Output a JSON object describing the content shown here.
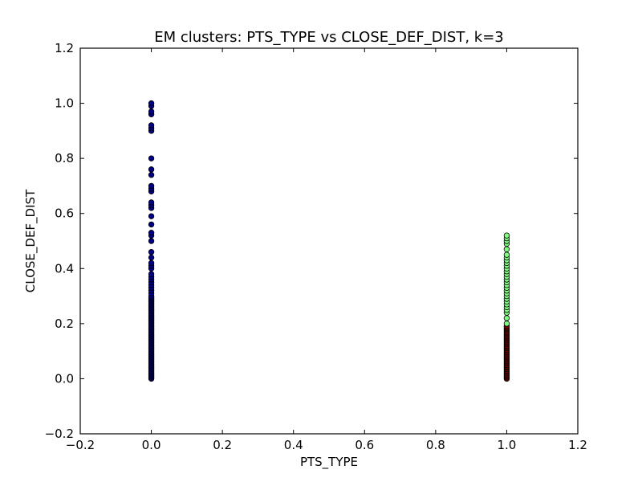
{
  "chart_data": {
    "type": "scatter",
    "title": "EM clusters: PTS_TYPE vs CLOSE_DEF_DIST, k=3",
    "xlabel": "PTS_TYPE",
    "ylabel": "CLOSE_DEF_DIST",
    "xlim": [
      -0.2,
      1.2
    ],
    "ylim": [
      -0.2,
      1.2
    ],
    "xticks": [
      -0.2,
      0.0,
      0.2,
      0.4,
      0.6,
      0.8,
      1.0,
      1.2
    ],
    "yticks": [
      -0.2,
      0.0,
      0.2,
      0.4,
      0.6,
      0.8,
      1.0,
      1.2
    ],
    "xtick_labels": [
      "−0.2",
      "0.0",
      "0.2",
      "0.4",
      "0.6",
      "0.8",
      "1.0",
      "1.2"
    ],
    "ytick_labels": [
      "−0.2",
      "0.0",
      "0.2",
      "0.4",
      "0.6",
      "0.8",
      "1.0",
      "1.2"
    ],
    "grid": false,
    "legend": "none",
    "series": [
      {
        "color": "#00007f",
        "x": 0.0,
        "y": [
          0.0,
          0.005,
          0.01,
          0.015,
          0.02,
          0.025,
          0.03,
          0.035,
          0.04,
          0.045,
          0.05,
          0.055,
          0.06,
          0.065,
          0.07,
          0.075,
          0.08,
          0.085,
          0.09,
          0.095,
          0.1,
          0.105,
          0.11,
          0.115,
          0.12,
          0.125,
          0.13,
          0.135,
          0.14,
          0.145,
          0.15,
          0.155,
          0.16,
          0.165,
          0.17,
          0.175,
          0.18,
          0.185,
          0.19,
          0.195,
          0.2,
          0.205,
          0.21,
          0.215,
          0.22,
          0.225,
          0.23,
          0.235,
          0.24,
          0.245,
          0.25,
          0.255,
          0.26,
          0.265,
          0.27,
          0.275,
          0.28,
          0.285,
          0.29,
          0.295,
          0.3,
          0.31,
          0.32,
          0.33,
          0.34,
          0.35,
          0.36,
          0.37,
          0.38,
          0.4,
          0.41,
          0.42,
          0.44,
          0.46,
          0.5,
          0.52,
          0.53,
          0.56,
          0.59,
          0.62,
          0.63,
          0.64,
          0.68,
          0.69,
          0.7,
          0.74,
          0.76,
          0.8,
          0.9,
          0.91,
          0.92,
          0.96,
          0.97,
          0.99,
          1.0
        ]
      },
      {
        "color": "#7f0000",
        "x": 1.0,
        "y": [
          0.0,
          0.005,
          0.01,
          0.015,
          0.02,
          0.025,
          0.03,
          0.035,
          0.04,
          0.045,
          0.05,
          0.055,
          0.06,
          0.065,
          0.07,
          0.075,
          0.08,
          0.085,
          0.09,
          0.095,
          0.1,
          0.105,
          0.11,
          0.115,
          0.12,
          0.125,
          0.13,
          0.135,
          0.14,
          0.145,
          0.15,
          0.155,
          0.16,
          0.165,
          0.17,
          0.175,
          0.18,
          0.185,
          0.19
        ]
      },
      {
        "color": "#7fff7f",
        "x": 1.0,
        "y": [
          0.2,
          0.22,
          0.24,
          0.25,
          0.26,
          0.27,
          0.28,
          0.29,
          0.3,
          0.31,
          0.32,
          0.33,
          0.34,
          0.35,
          0.36,
          0.37,
          0.38,
          0.39,
          0.4,
          0.41,
          0.42,
          0.43,
          0.44,
          0.45,
          0.47,
          0.49,
          0.5,
          0.51,
          0.52
        ]
      }
    ]
  }
}
